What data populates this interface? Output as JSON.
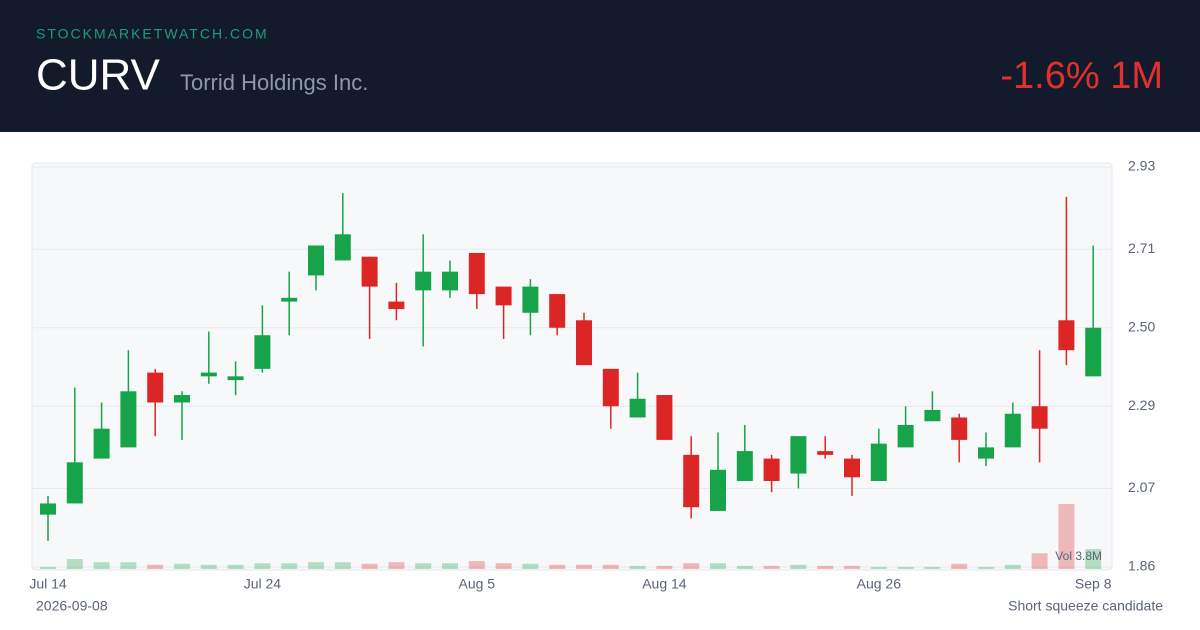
{
  "header": {
    "brand": "STOCKMARKETWATCH.COM",
    "ticker": "CURV",
    "company": "Torrid Holdings Inc.",
    "change": "-1.6% 1M"
  },
  "footer": {
    "date": "2026-09-08",
    "note": "Short squeeze candidate"
  },
  "chart_data": {
    "type": "candlestick",
    "categories": [
      "Jul 14",
      null,
      null,
      null,
      null,
      null,
      null,
      null,
      "Jul 24",
      null,
      null,
      null,
      null,
      null,
      null,
      null,
      "Aug 5",
      null,
      null,
      null,
      null,
      null,
      null,
      "Aug 14",
      null,
      null,
      null,
      null,
      null,
      null,
      null,
      "Aug 26",
      null,
      null,
      null,
      null,
      null,
      null,
      null,
      "Sep 8"
    ],
    "open": [
      2.0,
      2.03,
      2.15,
      2.18,
      2.38,
      2.3,
      2.37,
      2.36,
      2.39,
      2.57,
      2.64,
      2.68,
      2.69,
      2.57,
      2.6,
      2.6,
      2.7,
      2.61,
      2.54,
      2.59,
      2.52,
      2.39,
      2.26,
      2.32,
      2.16,
      2.01,
      2.09,
      2.15,
      2.11,
      2.17,
      2.15,
      2.09,
      2.18,
      2.25,
      2.26,
      2.15,
      2.18,
      2.29,
      2.52,
      2.37
    ],
    "high": [
      2.05,
      2.34,
      2.3,
      2.44,
      2.39,
      2.33,
      2.49,
      2.41,
      2.56,
      2.65,
      2.72,
      2.86,
      2.69,
      2.62,
      2.75,
      2.68,
      2.7,
      2.61,
      2.63,
      2.59,
      2.54,
      2.39,
      2.38,
      2.32,
      2.21,
      2.22,
      2.24,
      2.16,
      2.21,
      2.21,
      2.16,
      2.23,
      2.29,
      2.33,
      2.27,
      2.22,
      2.3,
      2.44,
      2.85,
      2.72
    ],
    "low": [
      1.93,
      2.03,
      2.15,
      2.18,
      2.21,
      2.2,
      2.35,
      2.32,
      2.38,
      2.48,
      2.6,
      2.68,
      2.47,
      2.52,
      2.45,
      2.58,
      2.55,
      2.47,
      2.48,
      2.48,
      2.4,
      2.23,
      2.26,
      2.2,
      1.99,
      2.01,
      2.09,
      2.06,
      2.07,
      2.15,
      2.05,
      2.09,
      2.18,
      2.25,
      2.14,
      2.13,
      2.18,
      2.14,
      2.4,
      2.37
    ],
    "close": [
      2.03,
      2.14,
      2.23,
      2.33,
      2.3,
      2.32,
      2.38,
      2.37,
      2.48,
      2.58,
      2.72,
      2.75,
      2.61,
      2.55,
      2.65,
      2.65,
      2.59,
      2.56,
      2.61,
      2.5,
      2.4,
      2.29,
      2.31,
      2.2,
      2.02,
      2.12,
      2.17,
      2.09,
      2.21,
      2.16,
      2.1,
      2.19,
      2.24,
      2.28,
      2.2,
      2.18,
      2.27,
      2.23,
      2.44,
      2.5
    ],
    "volume": [
      0.4,
      1.9,
      1.3,
      1.3,
      0.8,
      1.0,
      0.8,
      0.8,
      1.1,
      1.1,
      1.3,
      1.3,
      1.0,
      1.3,
      1.1,
      1.1,
      1.5,
      1.1,
      1.0,
      0.8,
      0.8,
      0.8,
      0.6,
      0.6,
      1.1,
      1.1,
      0.6,
      0.6,
      0.8,
      0.6,
      0.6,
      0.4,
      0.4,
      0.4,
      1.0,
      0.4,
      0.8,
      3.0,
      12.4,
      3.8
    ],
    "volume_label": "Vol 3.8M",
    "up_color": "#16a34a",
    "down_color": "#dc2626",
    "ylim": [
      1.86,
      2.93
    ],
    "yticks": [
      1.86,
      2.07,
      2.29,
      {
        "value": 2.5,
        "label": "2.50"
      },
      2.71,
      2.93
    ],
    "grid": true
  }
}
